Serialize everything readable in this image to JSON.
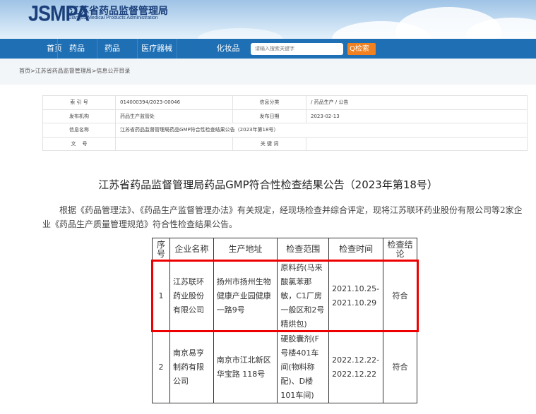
{
  "header": {
    "logo": "JSMPA",
    "name_cn": "江苏省药品监督管理局",
    "name_en": "Jiangsu Medical Products Administration"
  },
  "nav": {
    "items": [
      "首页",
      "药品",
      "医疗器械",
      "化妆品"
    ],
    "search_placeholder": "请输入搜索关键字",
    "search_button": "Q检索"
  },
  "breadcrumb": "首页>江苏省药品监督管理局>信息公开目录",
  "meta": {
    "index_label": "索 引 号",
    "index_value": "014000394/2023-00046",
    "category_label": "信息分类",
    "category_value": "/  药品生产  /  公告",
    "publisher_label": "发布机构",
    "publisher_value": "药品生产监管处",
    "date_label": "发布日期",
    "date_value": "2023-02-13",
    "name_label": "信息名称",
    "name_value": "江苏省药品监督管理局药品GMP符合性检查结果公告（2023年第18号）",
    "docno_label": "文    号",
    "docno_value": "",
    "keyword_label": "关 键 词",
    "keyword_value": ""
  },
  "article": {
    "title": "江苏省药品监督管理局药品GMP符合性检查结果公告（2023年第18号）",
    "paragraph": "根据《药品管理法》、《药品生产监督管理办法》有关规定，经现场检查并综合评定，现将江苏联环药业股份有限公司等2家企业《药品生产质量管理规范》符合性检查结果公告。"
  },
  "table": {
    "headers": [
      "序号",
      "企业名称",
      "生产地址",
      "检查范围",
      "检查时间",
      "检查结论"
    ],
    "rows": [
      [
        "1",
        "江苏联环药业股份有限公司",
        "扬州市扬州生物健康产业园健康一路9号",
        "原料药(马来酸氯苯那敏，C1厂房一般区和2号精烘包)",
        "2021.10.25-2021.10.29",
        "符合"
      ],
      [
        "2",
        "南京易亨制药有限公司",
        "南京市江北新区华宝路 118号",
        "硬胶囊剂(F号楼401车间(物料称配)、D楼101车间)",
        "2022.12.22-2022.12.22",
        "符合"
      ]
    ]
  },
  "colors": {
    "nav": "#1f6fb5",
    "search_button": "#f08020",
    "highlight": "#e00000"
  }
}
